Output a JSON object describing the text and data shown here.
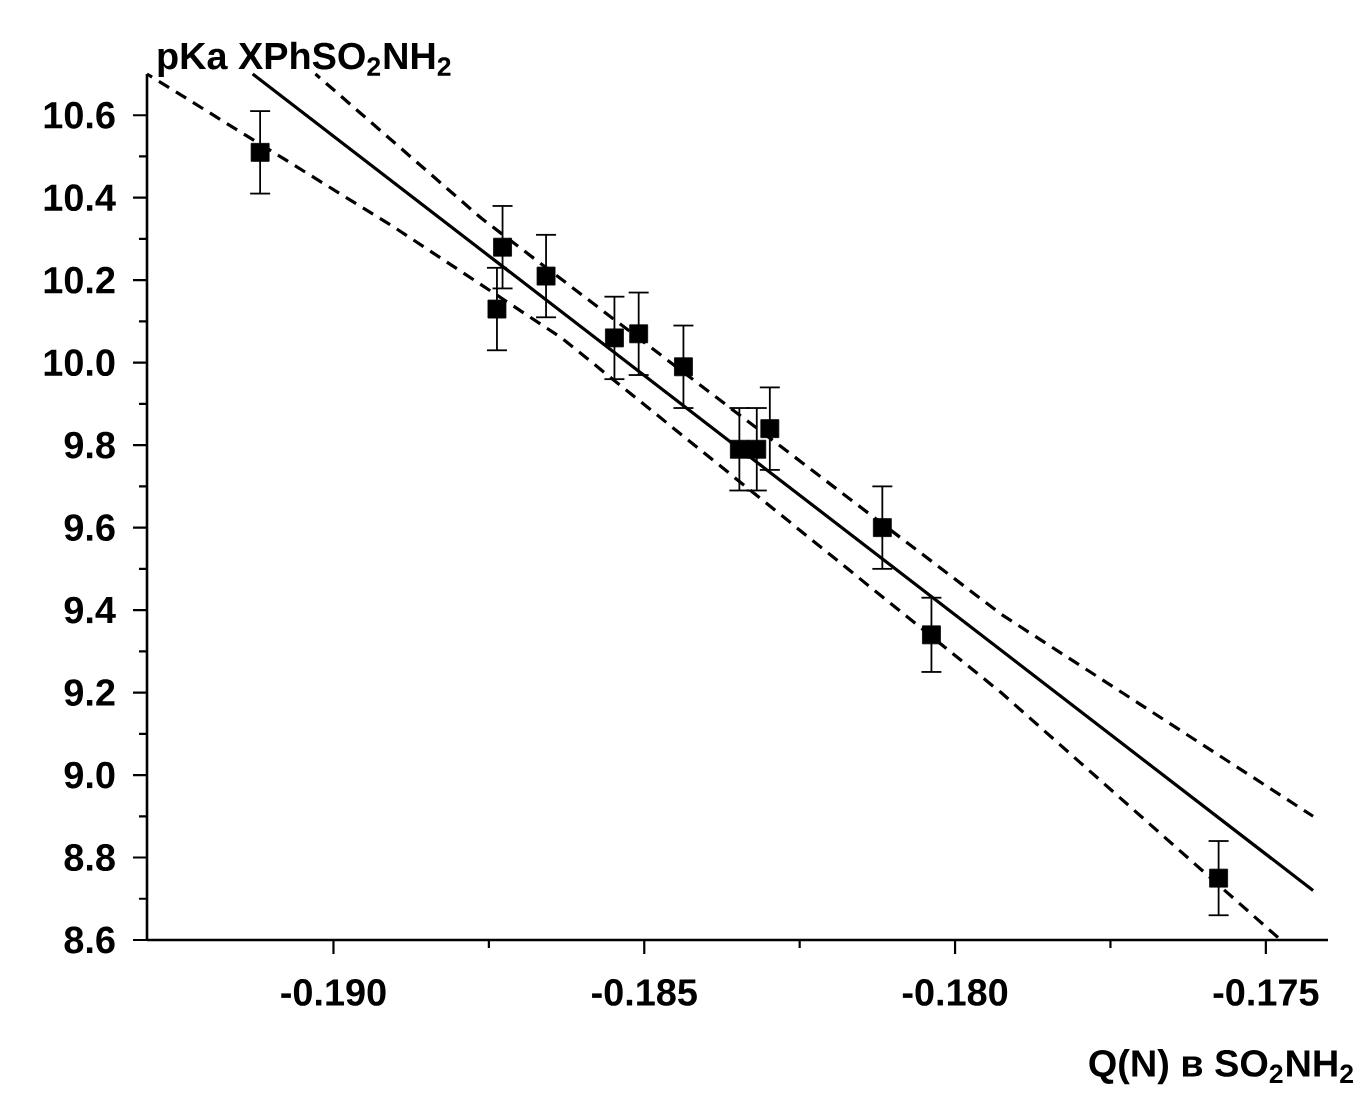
{
  "chart_data": {
    "type": "scatter",
    "xlabel": "Q(N) в SO$_{2}$NH$_{2}$",
    "ylabel": "pKa XPhSO$_{2}$NH$_{2}$",
    "xlim": [
      -0.193,
      -0.174
    ],
    "ylim": [
      8.6,
      10.7
    ],
    "xticks": [
      {
        "value": -0.19,
        "label": "-0.190"
      },
      {
        "value": -0.185,
        "label": "-0.185"
      },
      {
        "value": -0.18,
        "label": "-0.180"
      },
      {
        "value": -0.175,
        "label": "-0.175"
      }
    ],
    "yticks": [
      {
        "value": 8.6,
        "label": "8.6"
      },
      {
        "value": 8.8,
        "label": "8.8"
      },
      {
        "value": 9.0,
        "label": "9.0"
      },
      {
        "value": 9.2,
        "label": "9.2"
      },
      {
        "value": 9.4,
        "label": "9.4"
      },
      {
        "value": 9.6,
        "label": "9.6"
      },
      {
        "value": 9.8,
        "label": "9.8"
      },
      {
        "value": 10.0,
        "label": "10.0"
      },
      {
        "value": 10.2,
        "label": "10.2"
      },
      {
        "value": 10.4,
        "label": "10.4"
      },
      {
        "value": 10.6,
        "label": "10.6"
      }
    ],
    "series": [
      {
        "color": "#000000",
        "marker": "square",
        "x": [
          -0.19118,
          -0.18728,
          -0.18737,
          -0.18658,
          -0.18548,
          -0.18509,
          -0.18437,
          -0.18347,
          -0.18319,
          -0.18298,
          -0.18117,
          -0.18038,
          -0.17576
        ],
        "values": [
          10.51,
          10.28,
          10.13,
          10.21,
          10.06,
          10.07,
          9.99,
          9.79,
          9.79,
          9.84,
          9.6,
          9.34,
          8.75
        ],
        "errors": [
          0.1,
          0.1,
          0.1,
          0.1,
          0.1,
          0.1,
          0.1,
          0.1,
          0.1,
          0.1,
          0.1,
          0.09,
          0.09
        ]
      },
      {
        "type": "line",
        "color": "#000000",
        "marker": "none",
        "line_style": "solid",
        "x": [
          -0.1913,
          -0.17424
        ],
        "values": [
          10.7,
          8.72
        ]
      },
      {
        "type": "line",
        "color": "#000000",
        "marker": "none",
        "line_style": "dashed",
        "x": [
          -0.19029,
          -0.18762,
          -0.17926,
          -0.17424
        ],
        "values": [
          10.7,
          10.35,
          9.39,
          8.9
        ]
      },
      {
        "type": "line",
        "color": "#000000",
        "marker": "none",
        "line_style": "dashed",
        "x": [
          -0.193,
          -0.18904,
          -0.18633,
          -0.17926,
          -0.17476
        ],
        "values": [
          10.7,
          10.33,
          10.06,
          9.2,
          8.6
        ]
      }
    ]
  }
}
